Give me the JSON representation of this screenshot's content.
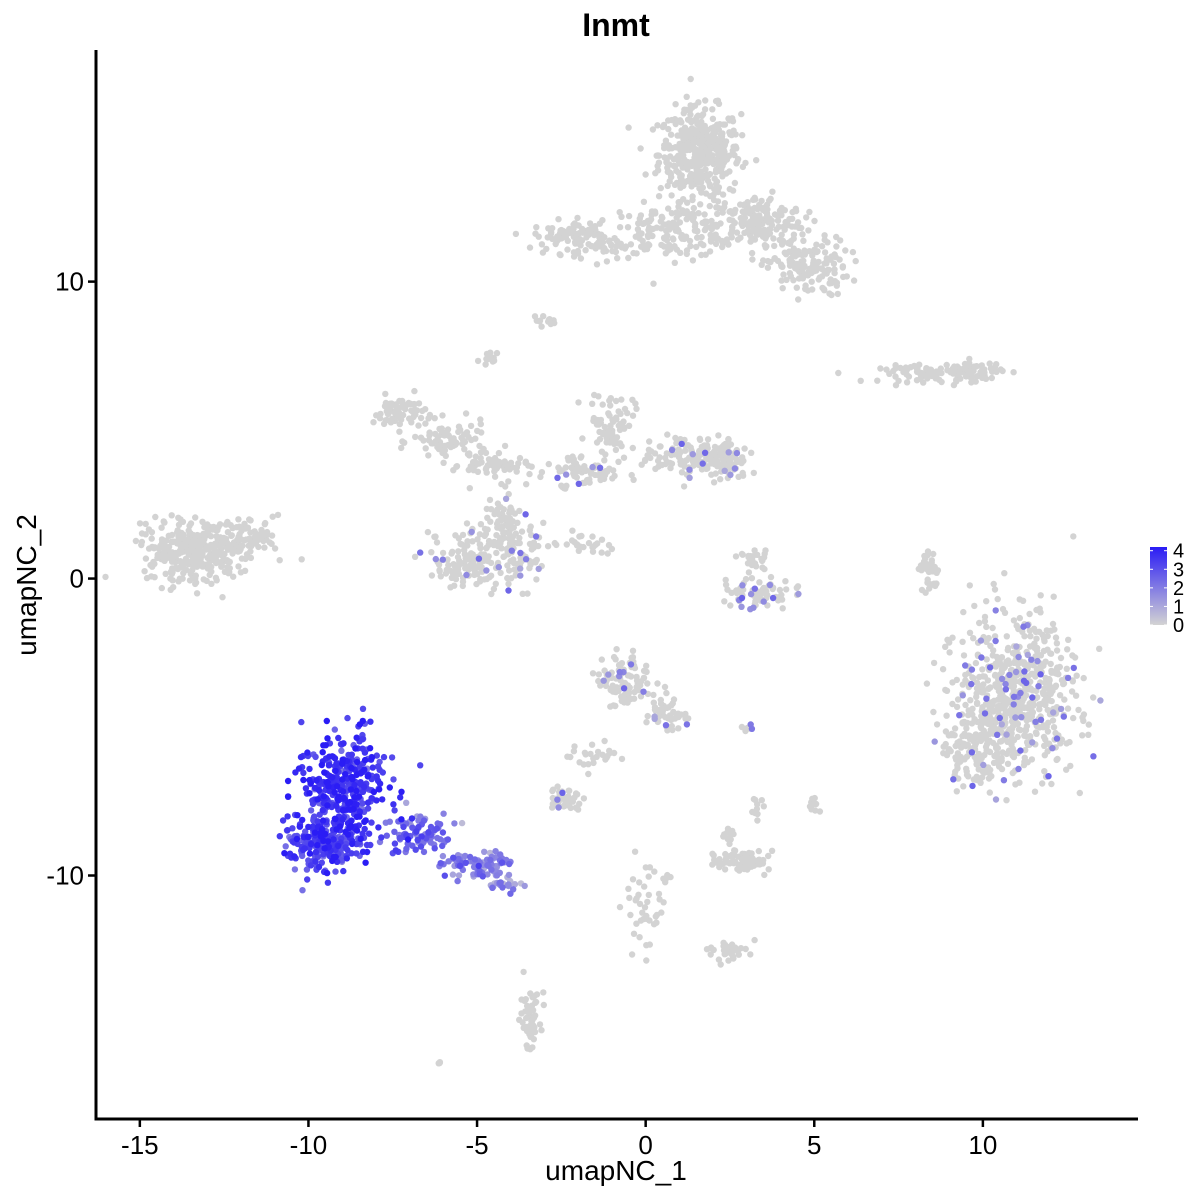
{
  "chart_data": {
    "type": "scatter",
    "title": "Inmt",
    "xlabel": "umapNC_1",
    "ylabel": "umapNC_2",
    "xlim": [
      -16.3,
      14.6
    ],
    "ylim": [
      -18.2,
      17.8
    ],
    "x_ticks": [
      -15,
      -10,
      -5,
      0,
      5,
      10
    ],
    "y_ticks": [
      -10,
      0,
      10
    ],
    "x_tick_labels": [
      "-15",
      "-10",
      "-5",
      "0",
      "5",
      "10"
    ],
    "y_tick_labels": [
      "-10",
      "0",
      "10"
    ],
    "grid": false,
    "legend": {
      "placement": "right",
      "type": "colorbar",
      "low_color": "#d3d3d3",
      "high_color": "#2a1cf5",
      "ticks": [
        4,
        3,
        2,
        1,
        0
      ],
      "tick_labels": [
        "4",
        "3",
        "2",
        "1",
        "0"
      ],
      "range": [
        0,
        4.2
      ]
    },
    "clusters": [
      {
        "cx": 1.6,
        "cy": 14.3,
        "rx": 1.1,
        "ry": 1.4,
        "n": 420,
        "expr": 0
      },
      {
        "cx": 0.8,
        "cy": 11.7,
        "rx": 1.8,
        "ry": 0.8,
        "n": 160,
        "expr": 0
      },
      {
        "cx": 3.3,
        "cy": 12.0,
        "rx": 1.3,
        "ry": 0.8,
        "n": 180,
        "expr": 0
      },
      {
        "cx": 4.8,
        "cy": 10.5,
        "rx": 1.1,
        "ry": 0.9,
        "n": 150,
        "expr": 0
      },
      {
        "cx": -2.2,
        "cy": 11.5,
        "rx": 1.0,
        "ry": 0.5,
        "n": 90,
        "expr": 0
      },
      {
        "cx": -1.0,
        "cy": 11.2,
        "rx": 0.6,
        "ry": 0.3,
        "n": 20,
        "expr": 0
      },
      {
        "cx": -3.0,
        "cy": 8.7,
        "rx": 0.3,
        "ry": 0.15,
        "n": 12,
        "expr": 0
      },
      {
        "cx": -4.6,
        "cy": 7.4,
        "rx": 0.3,
        "ry": 0.25,
        "n": 14,
        "expr": 0
      },
      {
        "cx": 8.4,
        "cy": 6.9,
        "rx": 1.3,
        "ry": 0.25,
        "n": 70,
        "expr": 0
      },
      {
        "cx": 9.7,
        "cy": 7.0,
        "rx": 0.8,
        "ry": 0.3,
        "n": 60,
        "expr": 0
      },
      {
        "cx": -7.3,
        "cy": 5.6,
        "rx": 0.7,
        "ry": 0.5,
        "n": 70,
        "expr": 0
      },
      {
        "cx": -5.8,
        "cy": 4.6,
        "rx": 1.0,
        "ry": 0.6,
        "n": 80,
        "expr": 0
      },
      {
        "cx": -4.5,
        "cy": 3.8,
        "rx": 0.9,
        "ry": 0.3,
        "n": 60,
        "expr": 0
      },
      {
        "cx": -1.0,
        "cy": 5.3,
        "rx": 0.6,
        "ry": 0.9,
        "n": 70,
        "expr": 0
      },
      {
        "cx": -2.0,
        "cy": 3.6,
        "rx": 1.1,
        "ry": 0.5,
        "n": 80,
        "expr": 0.05
      },
      {
        "cx": 1.4,
        "cy": 4.2,
        "rx": 1.4,
        "ry": 0.6,
        "n": 120,
        "expr": 0.05
      },
      {
        "cx": 2.3,
        "cy": 4.0,
        "rx": 0.6,
        "ry": 0.6,
        "n": 70,
        "expr": 0.05
      },
      {
        "cx": -4.1,
        "cy": 2.0,
        "rx": 0.6,
        "ry": 0.9,
        "n": 60,
        "expr": 0.05
      },
      {
        "cx": -5.2,
        "cy": 0.7,
        "rx": 1.1,
        "ry": 1.0,
        "n": 150,
        "expr": 0.05
      },
      {
        "cx": -3.7,
        "cy": 0.6,
        "rx": 0.6,
        "ry": 0.8,
        "n": 60,
        "expr": 0.08
      },
      {
        "cx": -1.8,
        "cy": 1.2,
        "rx": 0.9,
        "ry": 0.3,
        "n": 25,
        "expr": 0
      },
      {
        "cx": -13.4,
        "cy": 0.9,
        "rx": 1.4,
        "ry": 0.9,
        "n": 340,
        "expr": 0
      },
      {
        "cx": -11.6,
        "cy": 1.4,
        "rx": 0.8,
        "ry": 0.6,
        "n": 60,
        "expr": 0
      },
      {
        "cx": 3.3,
        "cy": -0.5,
        "rx": 0.9,
        "ry": 0.5,
        "n": 70,
        "expr": 0.2
      },
      {
        "cx": 3.2,
        "cy": 0.7,
        "rx": 0.4,
        "ry": 0.3,
        "n": 25,
        "expr": 0
      },
      {
        "cx": 8.4,
        "cy": 0.3,
        "rx": 0.25,
        "ry": 0.8,
        "n": 35,
        "expr": 0
      },
      {
        "cx": 11.0,
        "cy": -4.0,
        "rx": 1.6,
        "ry": 2.3,
        "n": 650,
        "expr": 0.08
      },
      {
        "cx": 9.8,
        "cy": -5.8,
        "rx": 0.8,
        "ry": 1.0,
        "n": 120,
        "expr": 0.05
      },
      {
        "cx": -0.7,
        "cy": -3.5,
        "rx": 0.7,
        "ry": 0.9,
        "n": 100,
        "expr": 0.1
      },
      {
        "cx": 0.6,
        "cy": -4.4,
        "rx": 0.6,
        "ry": 0.7,
        "n": 50,
        "expr": 0.1
      },
      {
        "cx": -1.6,
        "cy": -6.0,
        "rx": 0.9,
        "ry": 0.4,
        "n": 25,
        "expr": 0
      },
      {
        "cx": -2.4,
        "cy": -7.4,
        "rx": 0.5,
        "ry": 0.3,
        "n": 45,
        "expr": 0.05
      },
      {
        "cx": 2.8,
        "cy": -9.5,
        "rx": 0.7,
        "ry": 0.3,
        "n": 70,
        "expr": 0
      },
      {
        "cx": 2.5,
        "cy": -8.7,
        "rx": 0.2,
        "ry": 0.3,
        "n": 12,
        "expr": 0
      },
      {
        "cx": 3.3,
        "cy": -7.6,
        "rx": 0.2,
        "ry": 0.4,
        "n": 10,
        "expr": 0
      },
      {
        "cx": 5.0,
        "cy": -7.7,
        "rx": 0.15,
        "ry": 0.3,
        "n": 10,
        "expr": 0
      },
      {
        "cx": 3.0,
        "cy": -5.0,
        "rx": 0.25,
        "ry": 0.12,
        "n": 6,
        "expr": 0.1
      },
      {
        "cx": 0.0,
        "cy": -11.2,
        "rx": 0.7,
        "ry": 1.5,
        "n": 45,
        "expr": 0
      },
      {
        "cx": 2.4,
        "cy": -12.5,
        "rx": 0.6,
        "ry": 0.3,
        "n": 35,
        "expr": 0
      },
      {
        "cx": -3.4,
        "cy": -14.8,
        "rx": 0.3,
        "ry": 0.9,
        "n": 50,
        "expr": 0
      },
      {
        "cx": -6.1,
        "cy": -16.3,
        "rx": 0.12,
        "ry": 0.12,
        "n": 3,
        "expr": 0
      },
      {
        "cx": -9.0,
        "cy": -7.0,
        "rx": 1.1,
        "ry": 1.6,
        "n": 380,
        "expr": 3.6
      },
      {
        "cx": -9.5,
        "cy": -9.0,
        "rx": 1.1,
        "ry": 0.8,
        "n": 200,
        "expr": 3.3
      },
      {
        "cx": -6.6,
        "cy": -8.6,
        "rx": 0.9,
        "ry": 0.6,
        "n": 90,
        "expr": 2.4
      },
      {
        "cx": -5.0,
        "cy": -9.6,
        "rx": 0.9,
        "ry": 0.45,
        "n": 80,
        "expr": 2.0
      },
      {
        "cx": -4.2,
        "cy": -10.3,
        "rx": 0.4,
        "ry": 0.25,
        "n": 25,
        "expr": 1.6
      }
    ]
  }
}
